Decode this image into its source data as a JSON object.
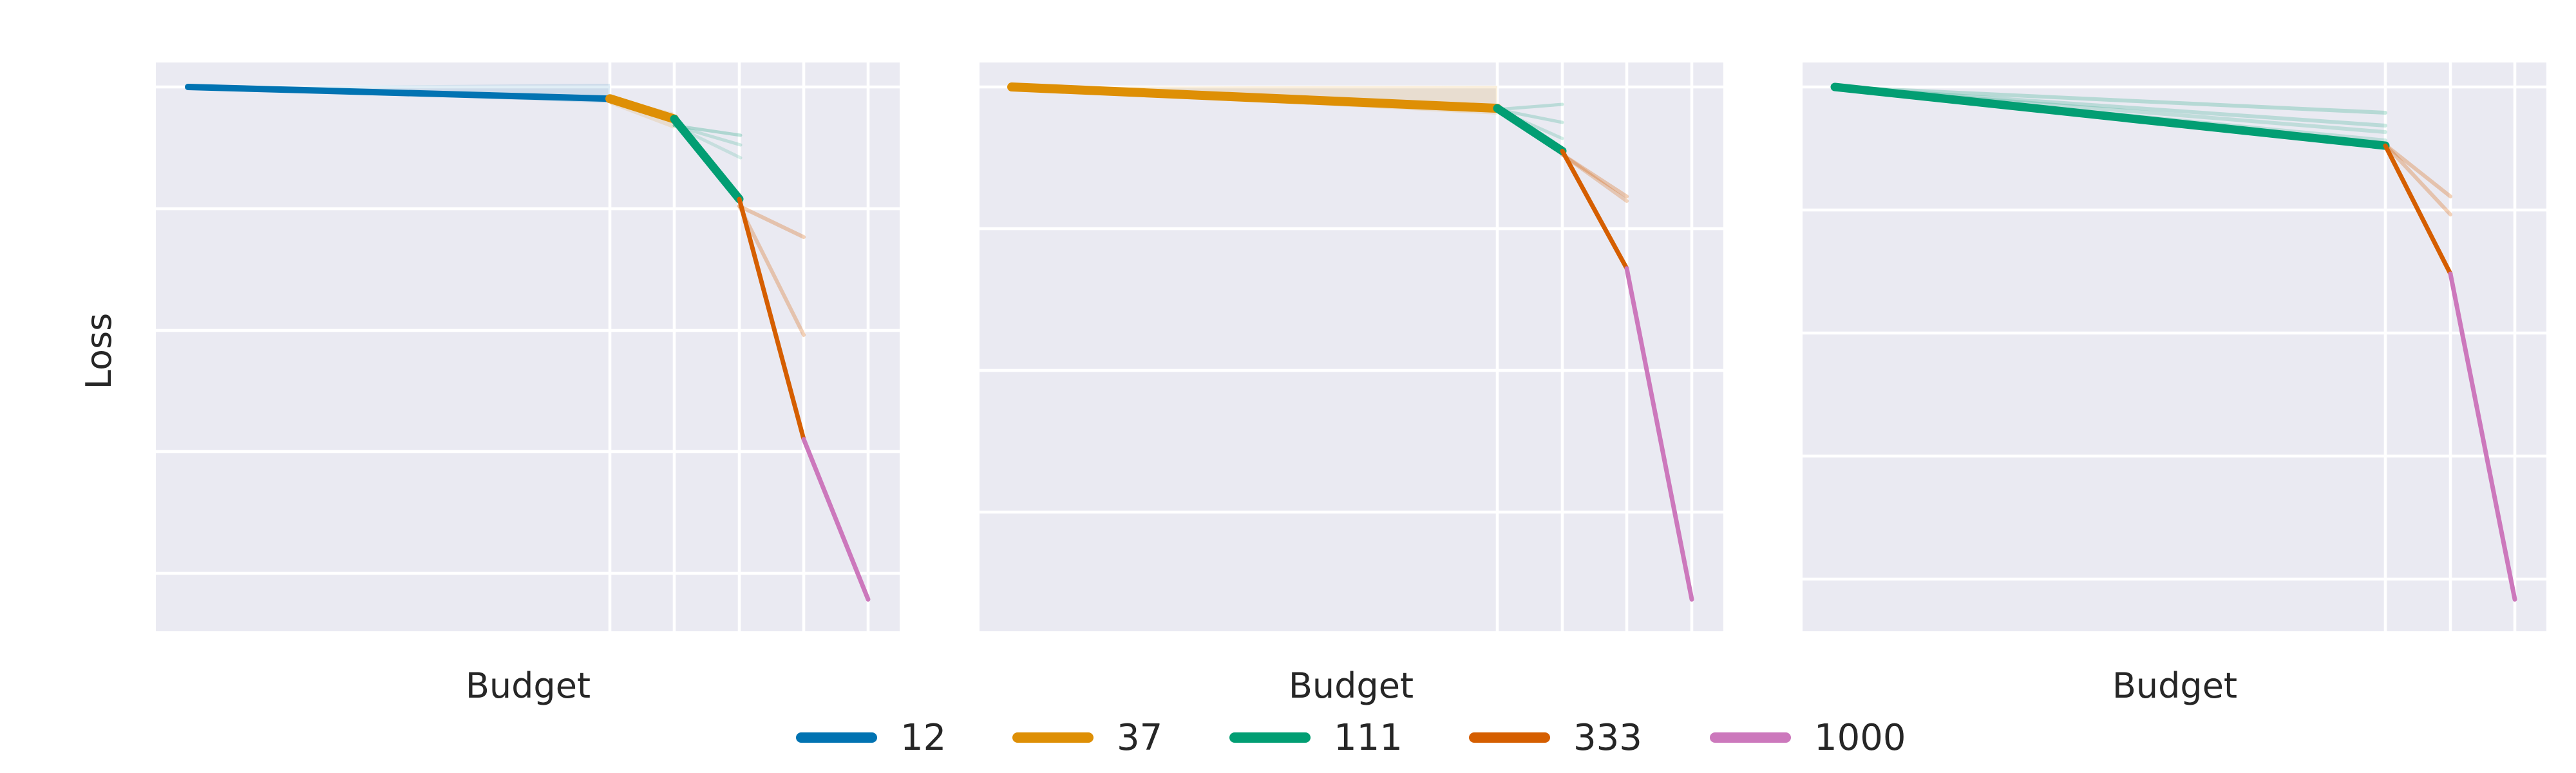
{
  "legend": {
    "items": [
      {
        "label": "12",
        "color": "#0173b2"
      },
      {
        "label": "37",
        "color": "#de8f05"
      },
      {
        "label": "111",
        "color": "#029e73"
      },
      {
        "label": "333",
        "color": "#d55e00"
      },
      {
        "label": "1000",
        "color": "#cc78bc"
      }
    ]
  },
  "chart_data": [
    {
      "type": "line",
      "xlabel": "Budget",
      "ylabel": "Loss",
      "x_scale": "log",
      "budgets": [
        12,
        37,
        111,
        333,
        1000
      ],
      "grid": true,
      "series": [
        {
          "name": "12",
          "color": "#0173b2",
          "x": [
            1,
            12
          ],
          "y": [
            0.98,
            0.958
          ]
        },
        {
          "name": "37",
          "color": "#de8f05",
          "x": [
            12,
            37
          ],
          "y": [
            0.958,
            0.92
          ]
        },
        {
          "name": "111",
          "color": "#029e73",
          "x": [
            37,
            111
          ],
          "y": [
            0.92,
            0.77
          ]
        },
        {
          "name": "333",
          "color": "#d55e00",
          "x": [
            111,
            333
          ],
          "y": [
            0.77,
            0.32
          ]
        },
        {
          "name": "1000",
          "color": "#cc78bc",
          "x": [
            333,
            1000
          ],
          "y": [
            0.32,
            0.02
          ]
        }
      ]
    },
    {
      "type": "line",
      "xlabel": "Budget",
      "ylabel": "",
      "x_scale": "log",
      "budgets": [
        37,
        111,
        333,
        1000
      ],
      "grid": true,
      "series": [
        {
          "name": "37",
          "color": "#de8f05",
          "x": [
            1,
            37
          ],
          "y": [
            0.98,
            0.94
          ]
        },
        {
          "name": "111",
          "color": "#029e73",
          "x": [
            37,
            111
          ],
          "y": [
            0.94,
            0.86
          ]
        },
        {
          "name": "333",
          "color": "#d55e00",
          "x": [
            111,
            333
          ],
          "y": [
            0.86,
            0.64
          ]
        },
        {
          "name": "1000",
          "color": "#cc78bc",
          "x": [
            333,
            1000
          ],
          "y": [
            0.64,
            0.02
          ]
        }
      ]
    },
    {
      "type": "line",
      "xlabel": "Budget",
      "ylabel": "",
      "x_scale": "log",
      "budgets": [
        111,
        333,
        1000
      ],
      "grid": true,
      "series": [
        {
          "name": "111",
          "color": "#029e73",
          "x": [
            1,
            111
          ],
          "y": [
            0.98,
            0.87
          ]
        },
        {
          "name": "333",
          "color": "#d55e00",
          "x": [
            111,
            333
          ],
          "y": [
            0.87,
            0.63
          ]
        },
        {
          "name": "1000",
          "color": "#cc78bc",
          "x": [
            333,
            1000
          ],
          "y": [
            0.63,
            0.02
          ]
        }
      ]
    }
  ]
}
